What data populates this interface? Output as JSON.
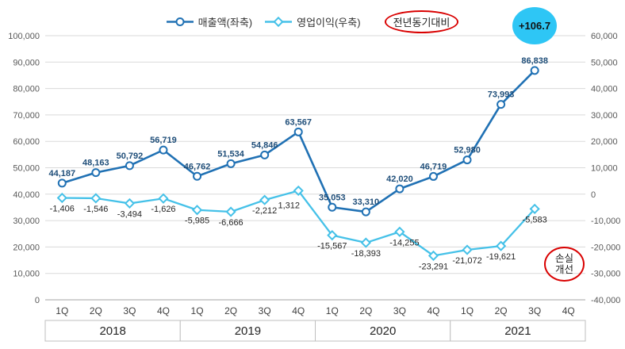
{
  "colors": {
    "revenue_line": "#2071B4",
    "revenue_label": "#1F4E79",
    "profit_line": "#45C1E8",
    "profit_label": "#262626",
    "badge_bg": "#2EC6F5",
    "annotation_red": "#D90000",
    "grid_line": "#DADADA",
    "axis_line": "#A6A6A6",
    "axis_text": "#595959",
    "quarter_text": "#404040",
    "year_text": "#262626"
  },
  "chart_data": {
    "type": "line",
    "legend": [
      "매출액(좌축)",
      "영업이익(우축)"
    ],
    "yoy_note": "전년동기대비",
    "badge": "+106.7",
    "loss_annotation": [
      "손실",
      "개선"
    ],
    "legend_position": "top",
    "grid": true,
    "categories": [
      "1Q",
      "2Q",
      "3Q",
      "4Q",
      "1Q",
      "2Q",
      "3Q",
      "4Q",
      "1Q",
      "2Q",
      "3Q",
      "4Q",
      "1Q",
      "2Q",
      "3Q",
      "4Q"
    ],
    "year_groups": [
      {
        "label": "2018",
        "quarters": 4
      },
      {
        "label": "2019",
        "quarters": 4
      },
      {
        "label": "2020",
        "quarters": 4
      },
      {
        "label": "2021",
        "quarters": 4
      }
    ],
    "series": [
      {
        "name": "매출액(좌축)",
        "axis": "left",
        "marker": "circle",
        "values": [
          44187,
          48163,
          50792,
          56719,
          46762,
          51534,
          54846,
          63567,
          35053,
          33310,
          42020,
          46719,
          52980,
          73993,
          86838,
          null
        ]
      },
      {
        "name": "영업이익(우축)",
        "axis": "right",
        "marker": "diamond",
        "values": [
          -1406,
          -1546,
          -3494,
          -1626,
          -5985,
          -6666,
          -2212,
          1312,
          -15567,
          -18393,
          -14255,
          -23291,
          -21072,
          -19621,
          -5583,
          null
        ]
      }
    ],
    "left_axis": {
      "min": 0,
      "max": 100000,
      "step": 10000
    },
    "right_axis": {
      "min": -40000,
      "max": 60000,
      "step": 10000
    }
  }
}
